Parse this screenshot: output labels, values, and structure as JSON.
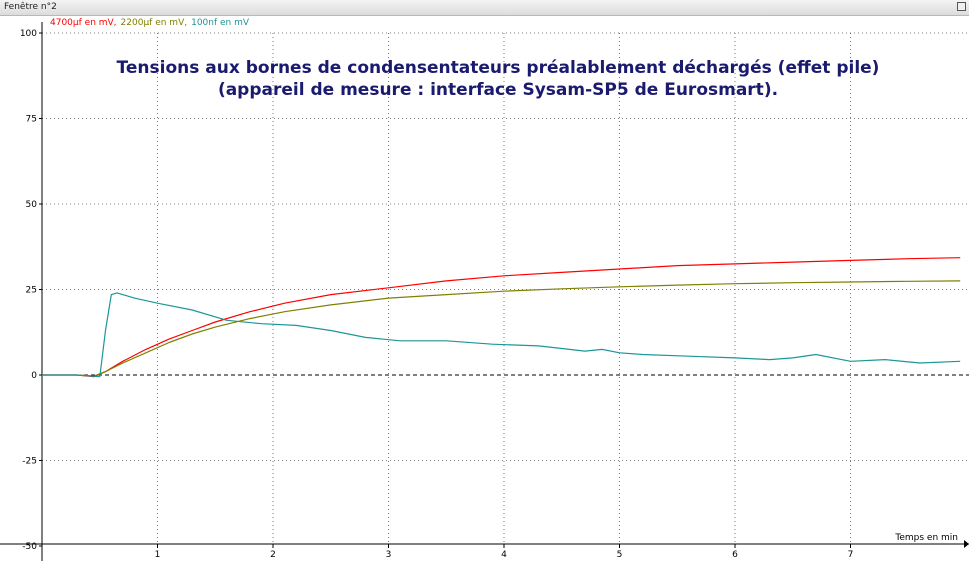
{
  "window": {
    "title": "Fenêtre n°2"
  },
  "chart_data": {
    "type": "line",
    "title": "Tensions aux bornes de condensentateurs préalablement déchargés (effet pile)",
    "subtitle": "(appareil de mesure : interface Sysam-SP5 de Eurosmart).",
    "xlabel": "Temps en min",
    "ylabel": "",
    "xlim": [
      0,
      8
    ],
    "ylim": [
      -50,
      100
    ],
    "x_ticks": [
      1,
      2,
      3,
      4,
      5,
      6,
      7
    ],
    "y_ticks": [
      -50,
      -25,
      0,
      25,
      50,
      75,
      100
    ],
    "grid": true,
    "legend_position": "top-left",
    "series": [
      {
        "name": "4700µf en mV",
        "color": "#ff0000",
        "x": [
          0,
          0.3,
          0.45,
          0.55,
          0.7,
          0.9,
          1.1,
          1.3,
          1.5,
          1.8,
          2.1,
          2.5,
          3.0,
          3.5,
          4.0,
          4.5,
          5.0,
          5.5,
          6.0,
          6.5,
          7.0,
          7.5,
          7.95
        ],
        "y": [
          0,
          0,
          -0.5,
          1,
          4,
          7.5,
          10.5,
          13,
          15.5,
          18.5,
          21,
          23.5,
          25.5,
          27.5,
          29,
          30,
          31,
          32,
          32.5,
          33,
          33.5,
          34,
          34.3
        ]
      },
      {
        "name": "2200µf en mV",
        "color": "#808000",
        "x": [
          0,
          0.3,
          0.45,
          0.55,
          0.7,
          0.9,
          1.1,
          1.3,
          1.5,
          1.8,
          2.1,
          2.5,
          3.0,
          3.5,
          4.0,
          4.5,
          5.0,
          5.5,
          6.0,
          6.5,
          7.0,
          7.5,
          7.95
        ],
        "y": [
          0,
          0,
          -0.3,
          1,
          3.5,
          6.5,
          9.5,
          12,
          14,
          16.5,
          18.5,
          20.5,
          22.5,
          23.5,
          24.5,
          25.2,
          25.8,
          26.3,
          26.7,
          27,
          27.2,
          27.4,
          27.5
        ]
      },
      {
        "name": "100nf en mV",
        "color": "#1e9696",
        "x": [
          0,
          0.3,
          0.5,
          0.55,
          0.6,
          0.65,
          0.8,
          1.0,
          1.3,
          1.6,
          1.9,
          2.2,
          2.5,
          2.8,
          3.1,
          3.5,
          3.9,
          4.3,
          4.7,
          4.85,
          5.0,
          5.2,
          5.6,
          6.0,
          6.3,
          6.5,
          6.7,
          7.0,
          7.3,
          7.6,
          7.95
        ],
        "y": [
          0,
          0,
          -0.5,
          13,
          23.5,
          24,
          22.5,
          21,
          19,
          16,
          15,
          14.5,
          13,
          11,
          10,
          10,
          9,
          8.5,
          7,
          7.5,
          6.5,
          6,
          5.5,
          5,
          4.5,
          5,
          6,
          4,
          4.5,
          3.5,
          4
        ]
      }
    ]
  }
}
